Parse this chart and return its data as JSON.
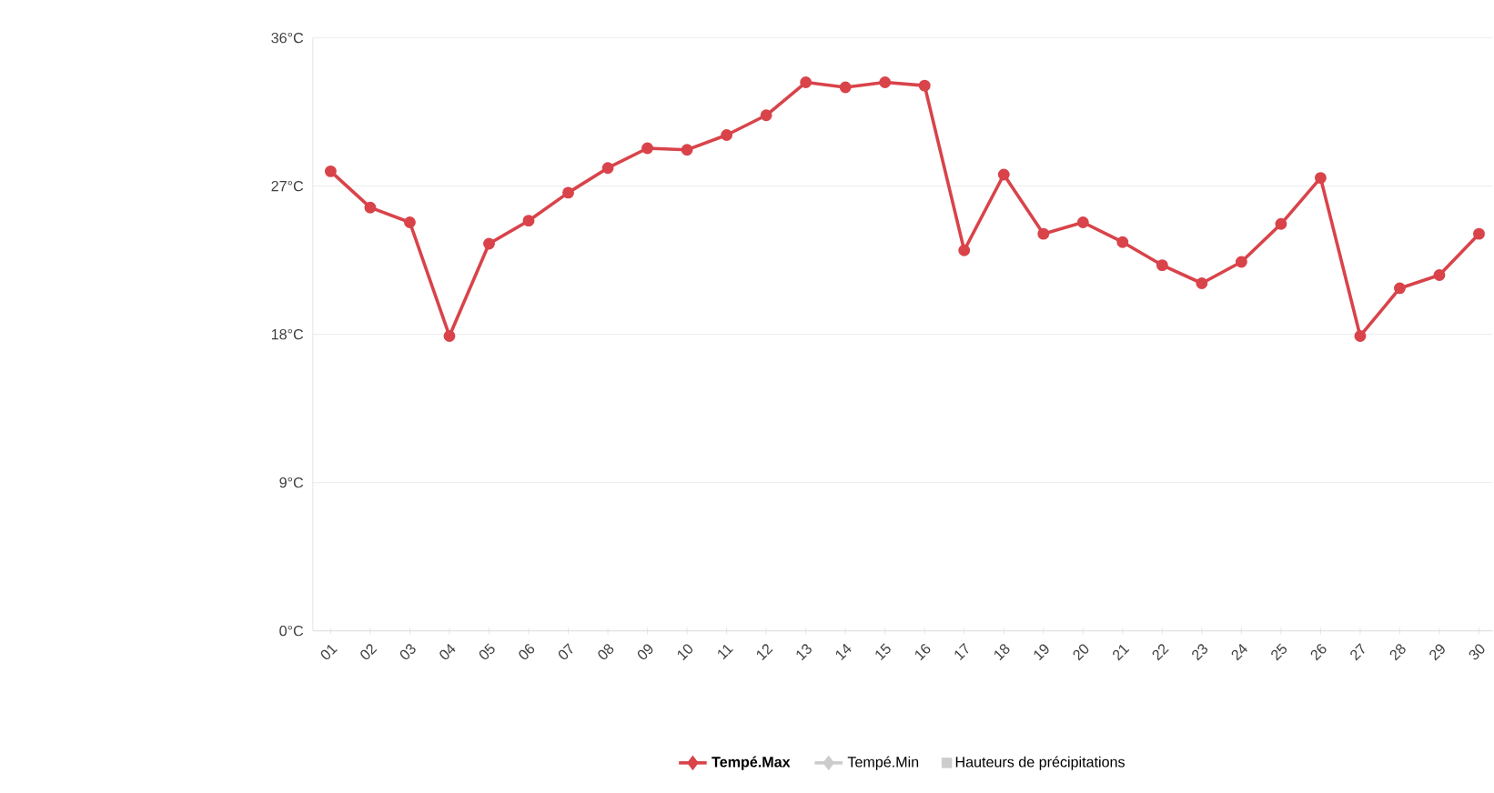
{
  "chart_data": {
    "type": "line",
    "categories": [
      "01",
      "02",
      "03",
      "04",
      "05",
      "06",
      "07",
      "08",
      "09",
      "10",
      "11",
      "12",
      "13",
      "14",
      "15",
      "16",
      "17",
      "18",
      "19",
      "20",
      "21",
      "22",
      "23",
      "24",
      "25",
      "26",
      "27",
      "28",
      "29",
      "30"
    ],
    "series": [
      {
        "name": "**Tempé.Max**",
        "color": "#d9434a",
        "values": [
          27.9,
          25.7,
          24.8,
          17.9,
          23.5,
          24.9,
          26.6,
          28.1,
          29.3,
          29.2,
          30.1,
          31.3,
          33.3,
          33.0,
          33.3,
          33.1,
          23.1,
          27.7,
          24.1,
          24.8,
          23.6,
          22.2,
          21.1,
          22.4,
          24.7,
          27.5,
          17.9,
          20.8,
          21.6,
          24.1
        ]
      },
      {
        "name": "Tempé.Min",
        "color": "#cccccc",
        "values": [
          null,
          null,
          null,
          null,
          null,
          null,
          null,
          null,
          null,
          null,
          null,
          null,
          null,
          null,
          null,
          null,
          null,
          null,
          null,
          null,
          null,
          null,
          null,
          null,
          null,
          null,
          null,
          null,
          null,
          null
        ]
      },
      {
        "name": "Hauteurs de précipitations",
        "type": "bar",
        "color": "#cccccc",
        "values": [
          null,
          null,
          null,
          null,
          null,
          null,
          null,
          null,
          null,
          null,
          null,
          null,
          null,
          null,
          null,
          null,
          null,
          null,
          null,
          null,
          null,
          null,
          null,
          null,
          null,
          null,
          null,
          null,
          null,
          null
        ]
      }
    ],
    "ylim": [
      0,
      36
    ],
    "yticks": [
      {
        "value": 0,
        "label": "0°C"
      },
      {
        "value": 9,
        "label": "9°C"
      },
      {
        "value": 18,
        "label": "18°C"
      },
      {
        "value": 27,
        "label": "27°C"
      },
      {
        "value": 36,
        "label": "36°C"
      }
    ],
    "grid": "y",
    "marker": "circle",
    "legend": "bottom"
  }
}
